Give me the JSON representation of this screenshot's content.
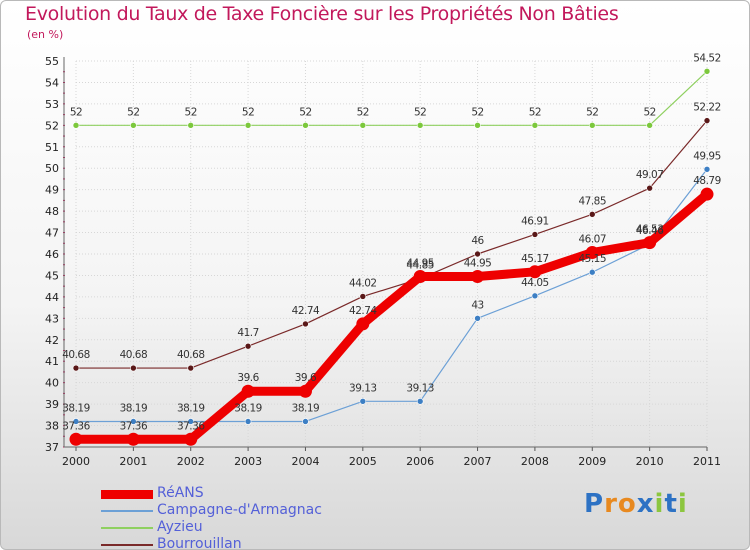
{
  "chart_data": {
    "type": "line",
    "title": "Evolution du Taux de Taxe Foncière sur les Propriétés Non Bâties",
    "ylabel": "(en %)",
    "xlabel": "",
    "ylim": [
      37,
      55
    ],
    "yticks": [
      37,
      38,
      39,
      40,
      41,
      42,
      43,
      44,
      45,
      46,
      47,
      48,
      49,
      50,
      51,
      52,
      53,
      54,
      55
    ],
    "categories": [
      "2000",
      "2001",
      "2002",
      "2003",
      "2004",
      "2005",
      "2006",
      "2007",
      "2008",
      "2009",
      "2010",
      "2011"
    ],
    "series": [
      {
        "name": "RéANS",
        "color": "#ee0000",
        "values": [
          37.36,
          37.36,
          37.36,
          39.6,
          39.6,
          42.74,
          44.95,
          44.95,
          45.17,
          46.07,
          46.53,
          48.79
        ],
        "labels": [
          "37.36",
          "37.36",
          "37.36",
          "39.6",
          "39.6",
          "42.74",
          "44.95",
          "44.95",
          "45.17",
          "46.07",
          "46.53",
          "48.79"
        ]
      },
      {
        "name": "Campagne-d'Armagnac",
        "color": "#6ca0d6",
        "values": [
          38.19,
          38.19,
          38.19,
          38.19,
          38.19,
          39.13,
          39.13,
          43,
          44.05,
          45.15,
          46.46,
          49.95
        ],
        "labels": [
          "38.19",
          "38.19",
          "38.19",
          "38.19",
          "38.19",
          "39.13",
          "39.13",
          "43",
          "44.05",
          "45.15",
          "46.46",
          "49.95"
        ]
      },
      {
        "name": "Ayzieu",
        "color": "#8fd060",
        "values": [
          52,
          52,
          52,
          52,
          52,
          52,
          52,
          52,
          52,
          52,
          52,
          54.52
        ],
        "labels": [
          "52",
          "52",
          "52",
          "52",
          "52",
          "52",
          "52",
          "52",
          "52",
          "52",
          "52",
          "54.52"
        ]
      },
      {
        "name": "Bourrouillan",
        "color": "#7a2a2a",
        "values": [
          40.68,
          40.68,
          40.68,
          41.7,
          42.74,
          44.02,
          44.85,
          46,
          46.91,
          47.85,
          49.07,
          52.22
        ],
        "labels": [
          "40.68",
          "40.68",
          "40.68",
          "41.7",
          "42.74",
          "44.02",
          "44.85",
          "46",
          "46.91",
          "47.85",
          "49.07",
          "52.22"
        ]
      }
    ]
  },
  "logo": {
    "text": "Proxiti"
  }
}
